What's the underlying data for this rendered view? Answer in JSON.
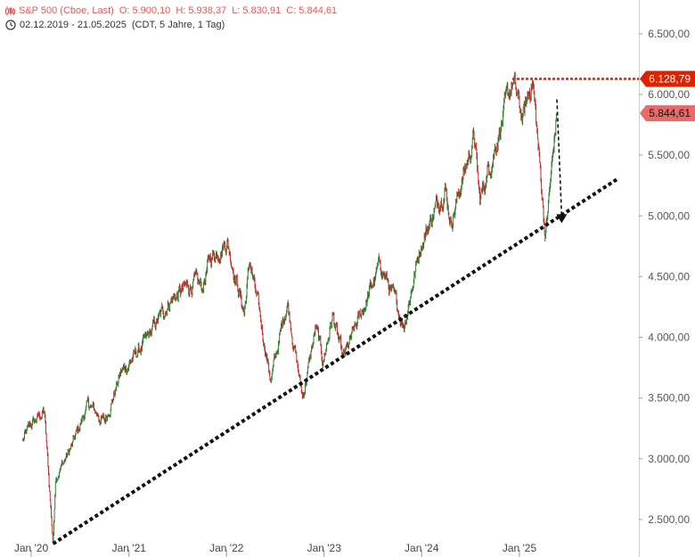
{
  "header": {
    "instrument": "S&P 500 (Cboe, Last)",
    "open": "O: 5.900,10",
    "high": "H: 5.938,37",
    "low": "L: 5.830,91",
    "close": "C: 5.844,61",
    "date_range": "02.12.2019 - 21.05.2025",
    "meta": "(CDT, 5 Jahre, 1 Tag)"
  },
  "colors": {
    "up": "#2e7d32",
    "down": "#c62828",
    "resistance": "#dd2200",
    "last_badge": "#e86a6a",
    "trendline": "#111111"
  },
  "chart_data": {
    "type": "candlestick",
    "title": "",
    "xlabel": "",
    "ylabel": "",
    "ylim": [
      2300,
      6800
    ],
    "x_ticks": [
      "Jan '20",
      "Jan '21",
      "Jan '22",
      "Jan '23",
      "Jan '24",
      "Jan '25"
    ],
    "y_ticks": [
      "2.500,00",
      "3.000,00",
      "3.500,00",
      "4.000,00",
      "4.500,00",
      "5.000,00",
      "5.500,00",
      "6.000,00",
      "6.500,00"
    ],
    "y_tick_values": [
      2500,
      3000,
      3500,
      4000,
      4500,
      5000,
      5500,
      6000,
      6500
    ],
    "series": [
      {
        "points": [
          [
            "2019-12",
            3150
          ],
          [
            "2020-01",
            3280
          ],
          [
            "2020-02-19",
            3390
          ],
          [
            "2020-03-23",
            2300
          ],
          [
            "2020-04",
            2850
          ],
          [
            "2020-06",
            3100
          ],
          [
            "2020-08",
            3450
          ],
          [
            "2020-10",
            3300
          ],
          [
            "2020-12",
            3700
          ],
          [
            "2021-03",
            3950
          ],
          [
            "2021-06",
            4300
          ],
          [
            "2021-09",
            4450
          ],
          [
            "2021-10",
            4400
          ],
          [
            "2021-11",
            4650
          ],
          [
            "2022-01-03",
            4800
          ],
          [
            "2022-03-08",
            4200
          ],
          [
            "2022-03-29",
            4630
          ],
          [
            "2022-06-16",
            3650
          ],
          [
            "2022-08-16",
            4300
          ],
          [
            "2022-10-12",
            3500
          ],
          [
            "2022-12-01",
            4080
          ],
          [
            "2022-12-28",
            3800
          ],
          [
            "2023-02-02",
            4180
          ],
          [
            "2023-03-13",
            3810
          ],
          [
            "2023-07-31",
            4600
          ],
          [
            "2023-10-27",
            4100
          ],
          [
            "2023-12-29",
            4770
          ],
          [
            "2024-03-28",
            5250
          ],
          [
            "2024-04-19",
            4950
          ],
          [
            "2024-07-16",
            5660
          ],
          [
            "2024-08-05",
            5120
          ],
          [
            "2024-12-06",
            6100
          ],
          [
            "2025-01-13",
            5800
          ],
          [
            "2025-02-19",
            6140
          ],
          [
            "2025-04-08",
            4835
          ],
          [
            "2025-05-21",
            5845
          ]
        ],
        "last": 5844.61
      }
    ],
    "annotations": {
      "resistance_label": "6.128,79",
      "resistance_value": 6128.79,
      "last_label": "5.844,61",
      "last_value": 5844.61,
      "trendline": [
        [
          "2020-03-23",
          2300
        ],
        [
          "2025-12-31",
          5300
        ]
      ],
      "projection_arrow": [
        [
          "2025-05-21",
          5960
        ],
        [
          "2025-06-08",
          4940
        ]
      ]
    }
  }
}
